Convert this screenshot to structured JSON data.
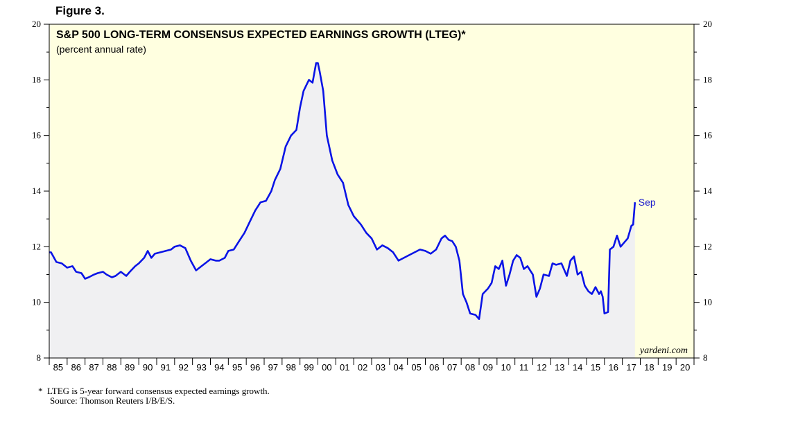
{
  "figure_label": "Figure 3.",
  "footnote": {
    "line1": "*  LTEG is 5-year forward consensus expected earnings growth.",
    "line2": "Source: Thomson Reuters I/B/E/S."
  },
  "colors": {
    "plot_bg": "#ffffe0",
    "line": "#0a14e6",
    "fill": "#f0f0f2",
    "annotation": "#1a1acc"
  },
  "chart_data": {
    "type": "area",
    "title": "S&P 500 LONG-TERM CONSENSUS EXPECTED EARNINGS GROWTH (LTEG)*",
    "subtitle": "(percent annual rate)",
    "xlabel": "",
    "ylabel": "",
    "xlim": [
      1985,
      2021
    ],
    "ylim": [
      8,
      20
    ],
    "yticks": [
      8,
      10,
      12,
      14,
      16,
      18,
      20
    ],
    "ytick_labels": [
      "8",
      "10",
      "12",
      "14",
      "16",
      "18",
      "20"
    ],
    "xtick_labels": [
      "85",
      "86",
      "87",
      "88",
      "89",
      "90",
      "91",
      "92",
      "93",
      "94",
      "95",
      "96",
      "97",
      "98",
      "99",
      "00",
      "01",
      "02",
      "03",
      "04",
      "05",
      "06",
      "07",
      "08",
      "09",
      "10",
      "11",
      "12",
      "13",
      "14",
      "15",
      "16",
      "17",
      "18",
      "19",
      "20"
    ],
    "grid": false,
    "series": [
      {
        "name": "LTEG",
        "x": [
          1985.0,
          1985.1,
          1985.4,
          1985.7,
          1986.0,
          1986.3,
          1986.5,
          1986.8,
          1987.0,
          1987.2,
          1987.5,
          1987.7,
          1988.0,
          1988.2,
          1988.5,
          1988.7,
          1989.0,
          1989.3,
          1989.5,
          1989.8,
          1990.0,
          1990.3,
          1990.5,
          1990.7,
          1990.9,
          1991.2,
          1991.5,
          1991.8,
          1992.0,
          1992.3,
          1992.6,
          1992.9,
          1993.2,
          1993.5,
          1993.7,
          1994.0,
          1994.3,
          1994.5,
          1994.8,
          1995.0,
          1995.3,
          1995.6,
          1995.9,
          1996.2,
          1996.5,
          1996.8,
          1997.1,
          1997.4,
          1997.6,
          1997.9,
          1998.2,
          1998.5,
          1998.8,
          1999.0,
          1999.2,
          1999.5,
          1999.7,
          1999.9,
          2000.0,
          2000.1,
          2000.3,
          2000.5,
          2000.8,
          2001.1,
          2001.4,
          2001.7,
          2002.0,
          2002.4,
          2002.7,
          2003.0,
          2003.3,
          2003.6,
          2003.9,
          2004.2,
          2004.5,
          2004.8,
          2005.1,
          2005.4,
          2005.7,
          2006.0,
          2006.3,
          2006.6,
          2006.9,
          2007.1,
          2007.3,
          2007.5,
          2007.7,
          2007.9,
          2008.1,
          2008.3,
          2008.5,
          2008.8,
          2009.0,
          2009.2,
          2009.5,
          2009.7,
          2009.9,
          2010.1,
          2010.3,
          2010.5,
          2010.7,
          2010.9,
          2011.1,
          2011.3,
          2011.5,
          2011.7,
          2012.0,
          2012.2,
          2012.4,
          2012.6,
          2012.9,
          2013.1,
          2013.3,
          2013.6,
          2013.9,
          2014.1,
          2014.3,
          2014.5,
          2014.7,
          2014.9,
          2015.1,
          2015.3,
          2015.5,
          2015.7,
          2015.8,
          2015.9,
          2016.0,
          2016.2,
          2016.3,
          2016.5,
          2016.7,
          2016.9,
          2017.1,
          2017.3,
          2017.5,
          2017.6,
          2017.7
        ],
        "values": [
          11.8,
          11.8,
          11.45,
          11.4,
          11.25,
          11.3,
          11.1,
          11.05,
          10.85,
          10.9,
          11.0,
          11.05,
          11.1,
          11.0,
          10.9,
          10.95,
          11.1,
          10.95,
          11.1,
          11.3,
          11.4,
          11.6,
          11.85,
          11.6,
          11.75,
          11.8,
          11.85,
          11.9,
          12.0,
          12.05,
          11.95,
          11.5,
          11.15,
          11.3,
          11.4,
          11.55,
          11.5,
          11.5,
          11.6,
          11.85,
          11.9,
          12.2,
          12.5,
          12.9,
          13.3,
          13.6,
          13.65,
          14.0,
          14.4,
          14.8,
          15.6,
          16.0,
          16.2,
          17.0,
          17.6,
          18.0,
          17.9,
          18.6,
          18.6,
          18.3,
          17.6,
          16.0,
          15.1,
          14.6,
          14.3,
          13.5,
          13.1,
          12.8,
          12.5,
          12.3,
          11.9,
          12.05,
          11.95,
          11.8,
          11.5,
          11.6,
          11.7,
          11.8,
          11.9,
          11.85,
          11.75,
          11.9,
          12.3,
          12.4,
          12.25,
          12.2,
          12.0,
          11.5,
          10.3,
          10.0,
          9.6,
          9.55,
          9.4,
          10.3,
          10.5,
          10.7,
          11.3,
          11.2,
          11.5,
          10.6,
          11.0,
          11.5,
          11.7,
          11.6,
          11.2,
          11.3,
          11.0,
          10.2,
          10.5,
          11.0,
          10.95,
          11.4,
          11.35,
          11.4,
          10.95,
          11.5,
          11.65,
          11.0,
          11.1,
          10.6,
          10.4,
          10.3,
          10.55,
          10.3,
          10.4,
          10.2,
          9.6,
          9.65,
          11.9,
          12.0,
          12.4,
          12.0,
          12.15,
          12.3,
          12.75,
          12.8,
          13.6
        ]
      }
    ],
    "annotations": [
      {
        "text": "Sep",
        "x": 2017.7,
        "y": 13.6
      }
    ],
    "watermark": "yardeni.com"
  }
}
